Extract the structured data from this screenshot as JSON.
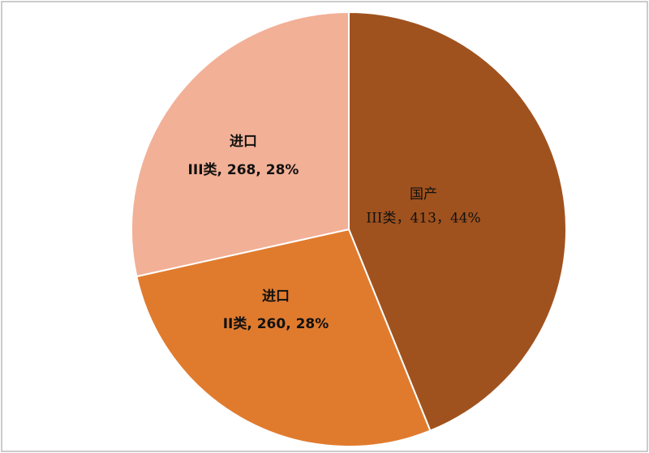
{
  "chart_data": {
    "type": "pie",
    "categories": [
      "国产",
      "进口",
      "进口"
    ],
    "values": [
      413,
      260,
      268
    ],
    "value_labels": [
      "III类，413，44%",
      "II类, 260, 28%",
      "III类, 268, 28%"
    ],
    "colors": [
      "#a0521e",
      "#e07b2e",
      "#f2b096"
    ]
  }
}
